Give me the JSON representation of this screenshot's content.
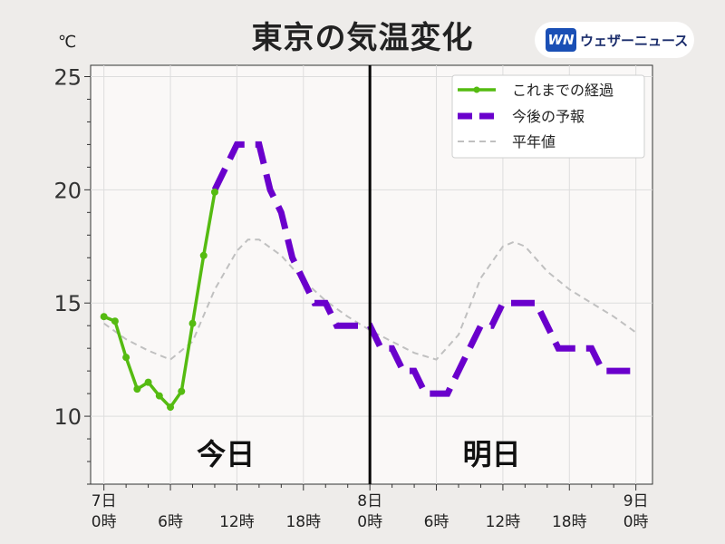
{
  "title": "東京の気温変化",
  "unit": "℃",
  "logo": {
    "mark": "WN",
    "text": "ウェザーニュース"
  },
  "day_labels": [
    "今日",
    "明日"
  ],
  "legend": {
    "observed": "これまでの経過",
    "forecast": "今後の予報",
    "normal": "平年値"
  },
  "colors": {
    "observed": "#55bb11",
    "forecast": "#6a00cc",
    "normal": "#c0c0c0",
    "divider": "#000000",
    "plot_bg": "#faf8f7",
    "grid": "#dddddd"
  },
  "chart_data": {
    "type": "line",
    "title": "東京の気温変化",
    "ylabel": "℃",
    "xlabel": "",
    "ylim": [
      7,
      25.5
    ],
    "xlim": [
      -1.2,
      49.5
    ],
    "x_unit": "hours from 7日 0時",
    "yticks": [
      10,
      15,
      20,
      25
    ],
    "xticks": [
      {
        "x": 0,
        "line1": "7日",
        "line2": "0時"
      },
      {
        "x": 6,
        "line1": "",
        "line2": "6時"
      },
      {
        "x": 12,
        "line1": "",
        "line2": "12時"
      },
      {
        "x": 18,
        "line1": "",
        "line2": "18時"
      },
      {
        "x": 24,
        "line1": "8日",
        "line2": "0時"
      },
      {
        "x": 30,
        "line1": "",
        "line2": "6時"
      },
      {
        "x": 36,
        "line1": "",
        "line2": "12時"
      },
      {
        "x": 42,
        "line1": "",
        "line2": "18時"
      },
      {
        "x": 48,
        "line1": "9日",
        "line2": "0時"
      }
    ],
    "current_time": 24,
    "grid": true,
    "legend_position": "top-right",
    "series": [
      {
        "name": "これまでの経過",
        "style": "solid-markers",
        "x": [
          0,
          1,
          2,
          3,
          4,
          5,
          6,
          7,
          8,
          9,
          10
        ],
        "y": [
          14.4,
          14.2,
          12.6,
          11.2,
          11.5,
          10.9,
          10.4,
          11.1,
          14.1,
          17.1,
          19.9
        ]
      },
      {
        "name": "今後の予報",
        "style": "dashed-thick",
        "x": [
          10,
          11,
          12,
          13,
          14,
          15,
          16,
          17,
          18,
          19,
          20,
          21,
          22,
          23,
          24,
          25,
          26,
          27,
          28,
          29,
          30,
          31,
          32,
          33,
          34,
          35,
          36,
          37,
          38,
          39,
          40,
          41,
          42,
          43,
          44,
          45,
          46,
          47,
          48
        ],
        "y": [
          20,
          21,
          22,
          22,
          22,
          20,
          19,
          17,
          16,
          15,
          15,
          14,
          14,
          14,
          14,
          13,
          13,
          12,
          12,
          11,
          11,
          11,
          12,
          13,
          14,
          14,
          15,
          15,
          15,
          15,
          14,
          13,
          13,
          13,
          13,
          12,
          12,
          12,
          12
        ]
      },
      {
        "name": "平年値",
        "style": "dashed-thin",
        "x": [
          0,
          2,
          4,
          6,
          8,
          10,
          12,
          13,
          14,
          16,
          18,
          20,
          22,
          24,
          26,
          28,
          30,
          32,
          34,
          36,
          37,
          38,
          40,
          42,
          44,
          46,
          48
        ],
        "y": [
          14.1,
          13.4,
          12.9,
          12.5,
          13.3,
          15.6,
          17.3,
          17.8,
          17.8,
          17.1,
          16.0,
          15.1,
          14.4,
          13.8,
          13.3,
          12.8,
          12.5,
          13.6,
          16.1,
          17.5,
          17.7,
          17.5,
          16.4,
          15.6,
          15.0,
          14.4,
          13.7
        ]
      }
    ]
  }
}
